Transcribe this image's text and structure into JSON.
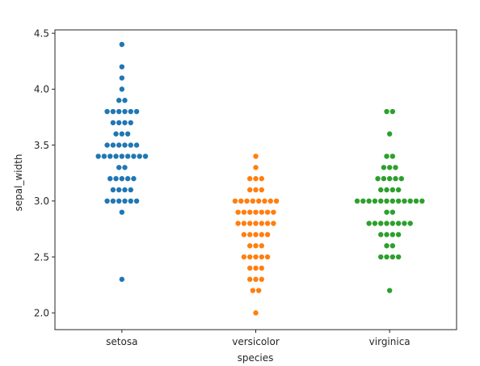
{
  "chart_data": {
    "type": "scatter",
    "subtype": "swarm",
    "title": "",
    "xlabel": "species",
    "ylabel": "sepal_width",
    "categories": [
      "setosa",
      "versicolor",
      "virginica"
    ],
    "ylim": [
      1.85,
      4.53
    ],
    "yticks": [
      2.0,
      2.5,
      3.0,
      3.5,
      4.0,
      4.5
    ],
    "ytick_labels": [
      "2.0",
      "2.5",
      "3.0",
      "3.5",
      "4.0",
      "4.5"
    ],
    "grid": false,
    "legend": "none",
    "series": [
      {
        "category": "setosa",
        "color": "#1f77b4",
        "values": [
          4.4,
          4.2,
          4.1,
          4.0,
          3.9,
          3.9,
          3.8,
          3.8,
          3.8,
          3.8,
          3.8,
          3.8,
          3.7,
          3.7,
          3.7,
          3.7,
          3.6,
          3.6,
          3.6,
          3.5,
          3.5,
          3.5,
          3.5,
          3.5,
          3.5,
          3.4,
          3.4,
          3.4,
          3.4,
          3.4,
          3.4,
          3.4,
          3.4,
          3.4,
          3.3,
          3.3,
          3.2,
          3.2,
          3.2,
          3.2,
          3.2,
          3.1,
          3.1,
          3.1,
          3.1,
          3.0,
          3.0,
          3.0,
          3.0,
          3.0,
          3.0,
          2.9,
          2.3
        ]
      },
      {
        "category": "versicolor",
        "color": "#ff7f0e",
        "values": [
          3.4,
          3.3,
          3.2,
          3.2,
          3.2,
          3.1,
          3.1,
          3.1,
          3.0,
          3.0,
          3.0,
          3.0,
          3.0,
          3.0,
          3.0,
          3.0,
          2.9,
          2.9,
          2.9,
          2.9,
          2.9,
          2.9,
          2.9,
          2.8,
          2.8,
          2.8,
          2.8,
          2.8,
          2.8,
          2.8,
          2.7,
          2.7,
          2.7,
          2.7,
          2.7,
          2.6,
          2.6,
          2.6,
          2.5,
          2.5,
          2.5,
          2.5,
          2.5,
          2.4,
          2.4,
          2.4,
          2.3,
          2.3,
          2.3,
          2.2,
          2.2,
          2.0
        ]
      },
      {
        "category": "virginica",
        "color": "#2ca02c",
        "values": [
          3.8,
          3.8,
          3.6,
          3.4,
          3.4,
          3.3,
          3.3,
          3.3,
          3.2,
          3.2,
          3.2,
          3.2,
          3.2,
          3.1,
          3.1,
          3.1,
          3.1,
          3.0,
          3.0,
          3.0,
          3.0,
          3.0,
          3.0,
          3.0,
          3.0,
          3.0,
          3.0,
          3.0,
          3.0,
          2.9,
          2.9,
          2.8,
          2.8,
          2.8,
          2.8,
          2.8,
          2.8,
          2.8,
          2.8,
          2.7,
          2.7,
          2.7,
          2.7,
          2.6,
          2.6,
          2.5,
          2.5,
          2.5,
          2.5,
          2.2
        ]
      }
    ]
  }
}
